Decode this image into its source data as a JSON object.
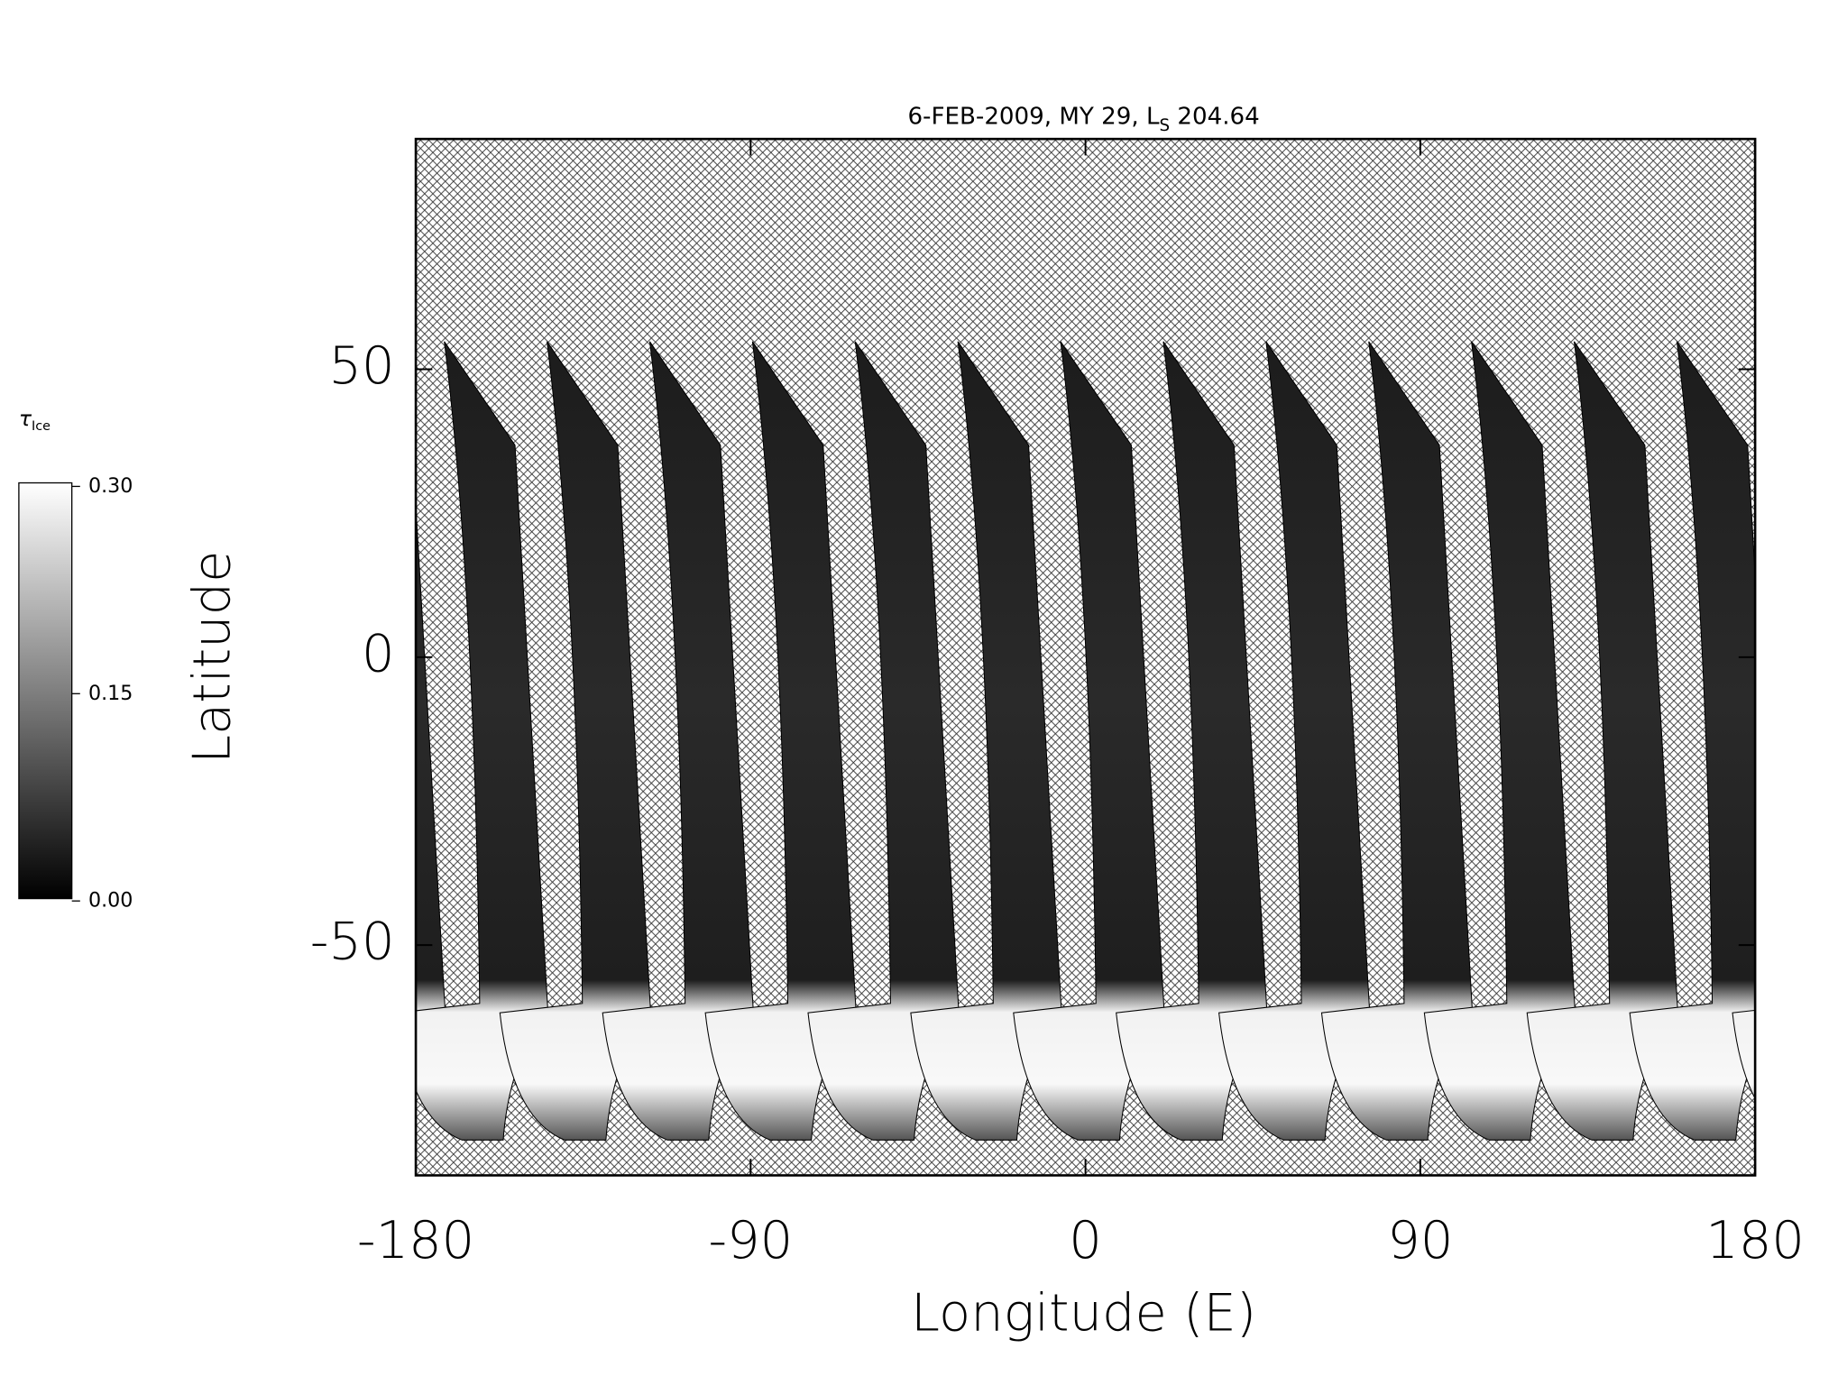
{
  "chart_data": {
    "type": "swath-map",
    "title": {
      "prefix": "6-FEB-2009, MY 29,  L",
      "subscript": "S",
      "suffix": " 204.64"
    },
    "x_label": "Longitude (E)",
    "y_label": "Latitude",
    "xlim": [
      -180,
      180
    ],
    "xticks": [
      -180,
      -90,
      0,
      90,
      180
    ],
    "ylim": [
      -90,
      90
    ],
    "yticks": [
      -50,
      0,
      50
    ],
    "colorbar": {
      "label": "τ",
      "label_sub": "Ice",
      "lim": [
        0,
        0.3
      ],
      "ticks": [
        {
          "value": 0,
          "label": "0.00"
        },
        {
          "value": 0.15,
          "label": "0.15"
        },
        {
          "value": 0.3,
          "label": "0.30"
        }
      ]
    }
  }
}
